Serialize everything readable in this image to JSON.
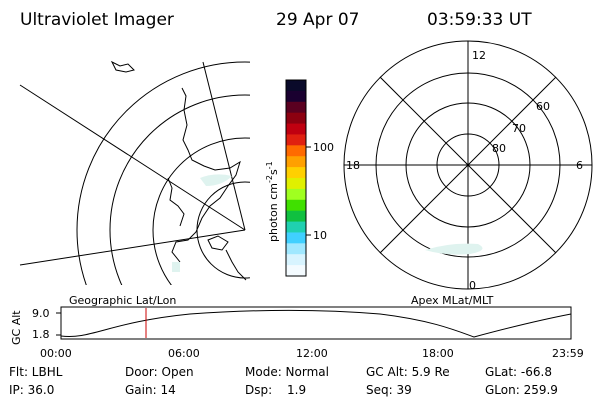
{
  "header": {
    "title": "Ultraviolet Imager",
    "date": "29 Apr 07",
    "time": "03:59:33 UT"
  },
  "colorbar": {
    "unit_label": "photon cm",
    "unit_exp1": "-2",
    "unit_s": "s",
    "unit_exp2": "-1",
    "tick_100": "100",
    "tick_10": "10",
    "colors": [
      "#0a0a2a",
      "#1a0030",
      "#5a0020",
      "#8c0010",
      "#c00010",
      "#e02010",
      "#ff6a00",
      "#ffa000",
      "#ffd000",
      "#e0f000",
      "#a0ff20",
      "#40e000",
      "#10c040",
      "#20d0b0",
      "#40d0ff",
      "#a0e8ff",
      "#d8f4ff",
      "#f4fbff"
    ]
  },
  "left_map": {
    "label": "Geographic Lat/Lon"
  },
  "right_polar": {
    "label": "Apex MLat/MLT",
    "mlt_12": "12",
    "mlt_18": "18",
    "mlt_6": "6",
    "mlt_0": "0",
    "lat_60": "60",
    "lat_70": "70",
    "lat_80": "80"
  },
  "altitude_plot": {
    "ylabel": "GC Alt",
    "y_top": "9.0",
    "y_bottom": "1.8",
    "x_ticks": [
      "00:00",
      "06:00",
      "12:00",
      "18:00",
      "23:59"
    ]
  },
  "info": {
    "filter": "Flt: LBHL",
    "door": "Door: Open",
    "mode": "Mode: Normal",
    "gc_alt": "GC Alt: 5.9 Re",
    "glat": "GLat: -66.8",
    "ip": "IP: 36.0",
    "gain": "Gain: 14",
    "dsp_label": "Dsp:",
    "dsp_value": "1.9",
    "seq": "Seq: 39",
    "glon": "GLon: 259.9"
  }
}
